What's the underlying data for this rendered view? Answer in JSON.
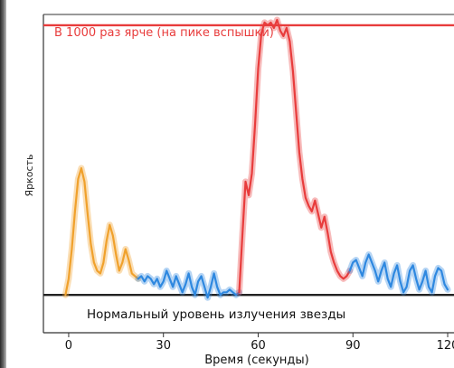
{
  "chart_data": {
    "type": "line",
    "xlabel": "Время (секунды)",
    "ylabel": "Яркость",
    "xticks": [
      0,
      30,
      60,
      90,
      120
    ],
    "xlim": [
      -8,
      122
    ],
    "ylim": [
      -0.14,
      1.04
    ],
    "grid": false,
    "legend": "none",
    "annotations": {
      "peak_label": "В 1000 раз ярче (на пике вспышки)",
      "baseline_label": "Нормальный уровень излучения звезды"
    },
    "reference_lines": [
      {
        "y": 1.0,
        "color": "#e83c3c"
      },
      {
        "y": 0.0,
        "color": "#222222"
      }
    ],
    "series": [
      {
        "color": "#f0a12c",
        "x": [
          -1,
          0,
          1,
          2,
          3,
          4,
          5,
          6,
          7,
          8,
          9,
          10,
          11,
          12,
          13,
          14,
          15,
          16,
          17,
          18,
          19,
          20,
          21,
          22
        ],
        "y": [
          0.0,
          0.06,
          0.17,
          0.31,
          0.43,
          0.47,
          0.42,
          0.3,
          0.19,
          0.12,
          0.09,
          0.08,
          0.12,
          0.2,
          0.26,
          0.22,
          0.15,
          0.09,
          0.12,
          0.17,
          0.13,
          0.08,
          0.07,
          0.06
        ]
      },
      {
        "color": "#2e88e0",
        "x": [
          22,
          23,
          24,
          25,
          26,
          27,
          28,
          29,
          30,
          31,
          32,
          33,
          34,
          35,
          36,
          37,
          38,
          39,
          40,
          41,
          42,
          43,
          44,
          45,
          46,
          47,
          48,
          49,
          50,
          51,
          52,
          53,
          54
        ],
        "y": [
          0.06,
          0.07,
          0.05,
          0.07,
          0.06,
          0.04,
          0.06,
          0.03,
          0.05,
          0.09,
          0.06,
          0.03,
          0.07,
          0.04,
          0.01,
          0.04,
          0.08,
          0.03,
          0.0,
          0.05,
          0.07,
          0.03,
          -0.01,
          0.03,
          0.08,
          0.03,
          0.0,
          0.01,
          0.01,
          0.02,
          0.01,
          0.0,
          0.01
        ]
      },
      {
        "color": "#e83c3c",
        "x": [
          54,
          55,
          56,
          57,
          58,
          59,
          60,
          61,
          62,
          63,
          64,
          65,
          66,
          67,
          68,
          69,
          70,
          71,
          72,
          73,
          74,
          75,
          76,
          77,
          78,
          79,
          80,
          81,
          82,
          83,
          84,
          85,
          86,
          87,
          88,
          89
        ],
        "y": [
          0.01,
          0.22,
          0.42,
          0.37,
          0.45,
          0.63,
          0.84,
          0.97,
          1.01,
          1.0,
          1.01,
          0.99,
          1.02,
          0.98,
          0.96,
          0.99,
          0.94,
          0.83,
          0.68,
          0.53,
          0.43,
          0.36,
          0.33,
          0.31,
          0.35,
          0.3,
          0.25,
          0.29,
          0.23,
          0.16,
          0.12,
          0.09,
          0.07,
          0.06,
          0.07,
          0.09
        ]
      },
      {
        "color": "#2e88e0",
        "x": [
          89,
          90,
          91,
          92,
          93,
          94,
          95,
          96,
          97,
          98,
          99,
          100,
          101,
          102,
          103,
          104,
          105,
          106,
          107,
          108,
          109,
          110,
          111,
          112,
          113,
          114,
          115,
          116,
          117,
          118,
          119,
          120
        ],
        "y": [
          0.09,
          0.12,
          0.13,
          0.1,
          0.07,
          0.12,
          0.15,
          0.12,
          0.09,
          0.05,
          0.09,
          0.12,
          0.06,
          0.03,
          0.08,
          0.11,
          0.05,
          0.01,
          0.03,
          0.09,
          0.11,
          0.06,
          0.02,
          0.05,
          0.09,
          0.03,
          0.01,
          0.07,
          0.1,
          0.09,
          0.04,
          0.02
        ]
      }
    ]
  }
}
